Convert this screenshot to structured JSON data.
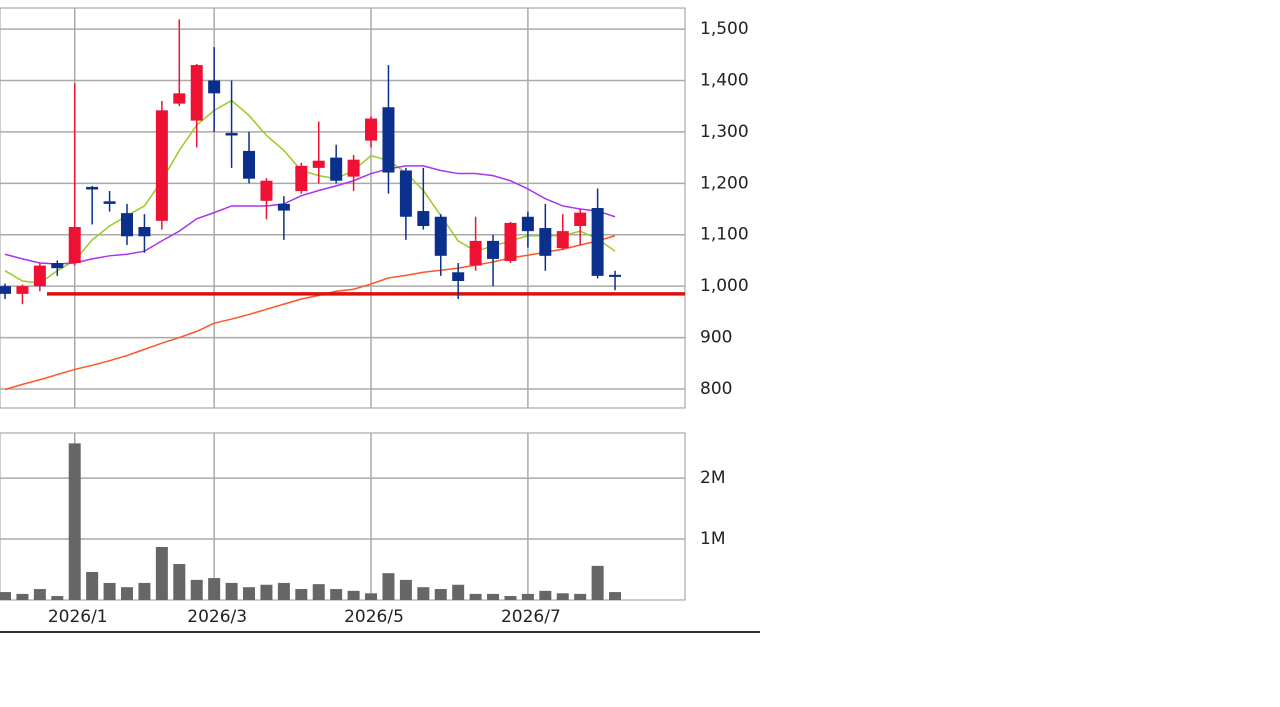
{
  "chart_data": [
    {
      "type": "candlestick",
      "up_color": "#ee1133",
      "down_color": "#0a2f8c",
      "open": [
        1000,
        985,
        1000,
        1045,
        1045,
        1193,
        1165,
        1142,
        1115,
        1127,
        1355,
        1322,
        1400,
        1298,
        1263,
        1166,
        1160,
        1185,
        1230,
        1250,
        1213,
        1283,
        1348,
        1225,
        1146,
        1135,
        1027,
        1040,
        1088,
        1049,
        1135,
        1113,
        1074,
        1117,
        1152,
        1022
      ],
      "high": [
        1005,
        1003,
        1045,
        1050,
        1395,
        1195,
        1185,
        1160,
        1140,
        1360,
        1519,
        1432,
        1465,
        1400,
        1300,
        1210,
        1175,
        1240,
        1320,
        1275,
        1255,
        1330,
        1430,
        1230,
        1230,
        1140,
        1045,
        1135,
        1100,
        1125,
        1145,
        1160,
        1140,
        1150,
        1190,
        1030
      ],
      "low": [
        975,
        965,
        990,
        1020,
        1040,
        1120,
        1145,
        1080,
        1065,
        1110,
        1350,
        1270,
        1300,
        1230,
        1200,
        1130,
        1090,
        1180,
        1200,
        1200,
        1185,
        1270,
        1180,
        1090,
        1110,
        1020,
        975,
        1030,
        1000,
        1045,
        1075,
        1030,
        1070,
        1080,
        1015,
        992
      ],
      "close": [
        985,
        1000,
        1040,
        1035,
        1115,
        1188,
        1160,
        1097,
        1097,
        1342,
        1375,
        1430,
        1375,
        1293,
        1209,
        1205,
        1147,
        1234,
        1244,
        1205,
        1246,
        1326,
        1221,
        1135,
        1117,
        1059,
        1010,
        1088,
        1053,
        1123,
        1107,
        1059,
        1107,
        1143,
        1020,
        1018
      ],
      "series": [
        {
          "color": "#99cc22",
          "values": [
            1030,
            1010,
            1006,
            1030,
            1050,
            1090,
            1117,
            1137,
            1156,
            1205,
            1264,
            1313,
            1342,
            1361,
            1332,
            1293,
            1264,
            1225,
            1215,
            1209,
            1225,
            1254,
            1244,
            1221,
            1186,
            1137,
            1088,
            1068,
            1078,
            1088,
            1098,
            1098,
            1098,
            1107,
            1092,
            1068
          ]
        },
        {
          "color": "#aa33ee",
          "values": [
            1062,
            1053,
            1045,
            1043,
            1045,
            1053,
            1059,
            1062,
            1068,
            1088,
            1107,
            1131,
            1143,
            1156,
            1156,
            1156,
            1160,
            1176,
            1186,
            1195,
            1205,
            1219,
            1228,
            1234,
            1234,
            1225,
            1219,
            1219,
            1215,
            1205,
            1189,
            1170,
            1156,
            1150,
            1146,
            1135
          ]
        },
        {
          "color": "#ff5522",
          "values": [
            799,
            809,
            818,
            828,
            838,
            846,
            855,
            865,
            877,
            889,
            900,
            912,
            928,
            936,
            945,
            955,
            965,
            975,
            982,
            990,
            994,
            1004,
            1016,
            1021,
            1027,
            1031,
            1035,
            1041,
            1047,
            1055,
            1060,
            1066,
            1072,
            1080,
            1088,
            1098
          ]
        }
      ],
      "hline": {
        "value": 985,
        "color": "#dd1111"
      },
      "ylim": [
        763,
        1541
      ],
      "yticks": [
        {
          "value": 1500,
          "label": "1,500"
        },
        {
          "value": 1400,
          "label": "1,400"
        },
        {
          "value": 1300,
          "label": "1,300"
        },
        {
          "value": 1200,
          "label": "1,200"
        },
        {
          "value": 1100,
          "label": "1,100"
        },
        {
          "value": 1000,
          "label": "1,000"
        },
        900,
        800
      ],
      "grid": true
    },
    {
      "type": "bar",
      "color": "#666666",
      "categories": [
        null,
        null,
        null,
        null,
        "2026/1",
        null,
        null,
        null,
        null,
        null,
        null,
        null,
        "2026/3",
        null,
        null,
        null,
        null,
        null,
        null,
        null,
        null,
        "2026/5",
        null,
        null,
        null,
        null,
        null,
        null,
        null,
        null,
        "2026/7",
        null,
        null,
        null,
        null,
        null
      ],
      "values": [
        130000,
        100000,
        180000,
        65000,
        2570000,
        460000,
        280000,
        210000,
        280000,
        870000,
        590000,
        330000,
        360000,
        280000,
        210000,
        250000,
        280000,
        180000,
        260000,
        180000,
        150000,
        110000,
        440000,
        330000,
        210000,
        180000,
        250000,
        100000,
        100000,
        65000,
        100000,
        150000,
        110000,
        100000,
        560000,
        130000
      ],
      "ylim": [
        0,
        2740000
      ],
      "yticks": [
        {
          "value": 2000000,
          "label": "2M"
        },
        {
          "value": 1000000,
          "label": "1M"
        }
      ],
      "grid": true
    }
  ]
}
